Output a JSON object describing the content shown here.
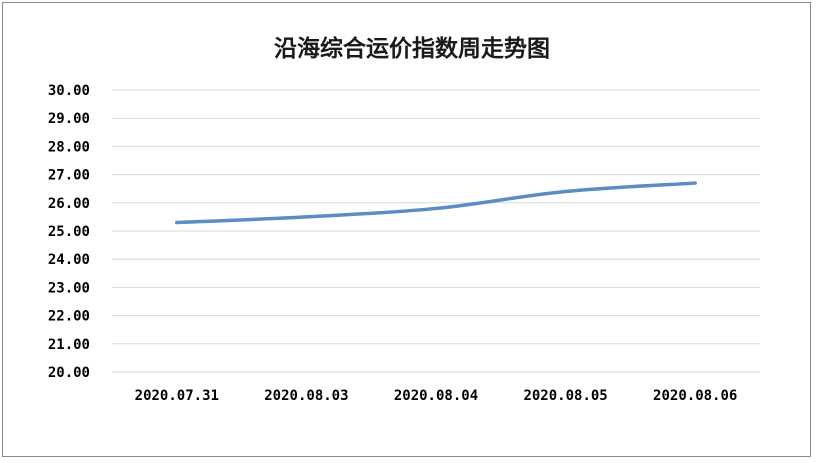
{
  "chart_data": {
    "type": "line",
    "title": "沿海综合运价指数周走势图",
    "xlabel": "",
    "ylabel": "",
    "categories": [
      "2020.07.31",
      "2020.08.03",
      "2020.08.04",
      "2020.08.05",
      "2020.08.06"
    ],
    "series": [
      {
        "values": [
          25.3,
          25.5,
          25.8,
          26.4,
          26.7
        ]
      }
    ],
    "ylim": [
      20,
      30
    ],
    "yticks": [
      "20.00",
      "21.00",
      "22.00",
      "23.00",
      "24.00",
      "25.00",
      "26.00",
      "27.00",
      "28.00",
      "29.00",
      "30.00"
    ],
    "grid": true,
    "legend": "none",
    "line_color": "#5b8cc4",
    "grid_color": "#d9d9d9"
  }
}
